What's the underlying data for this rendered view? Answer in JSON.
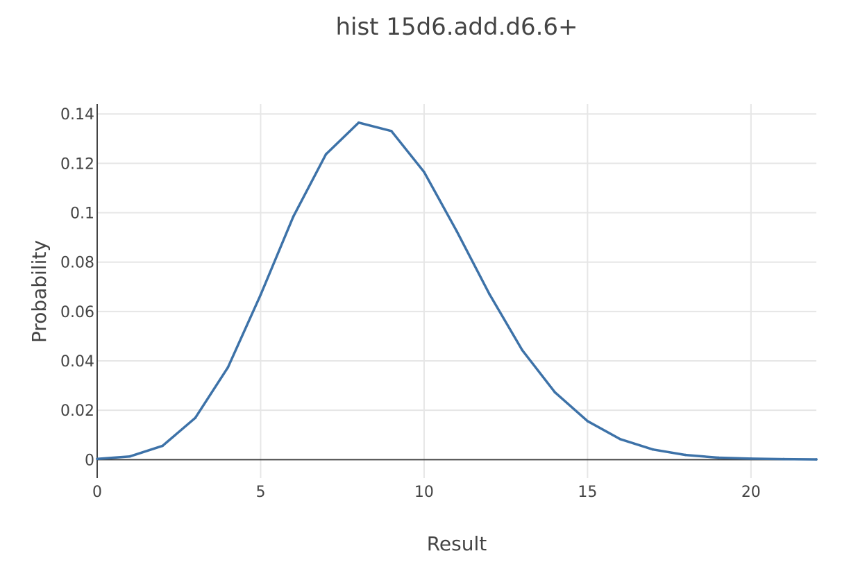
{
  "chart_data": {
    "type": "line",
    "title": "hist 15d6.add.d6.6+",
    "xlabel": "Result",
    "ylabel": "Probability",
    "xlim": [
      0,
      22
    ],
    "ylim": [
      -0.0075,
      0.144
    ],
    "x_ticks": [
      0,
      5,
      10,
      15,
      20
    ],
    "x_tick_labels": [
      "0",
      "5",
      "10",
      "15",
      "20"
    ],
    "y_ticks": [
      0,
      0.02,
      0.04,
      0.06,
      0.08,
      0.1,
      0.12,
      0.14
    ],
    "y_tick_labels": [
      "0",
      "0.02",
      "0.04",
      "0.06",
      "0.08",
      "0.1",
      "0.12",
      "0.14"
    ],
    "grid": true,
    "legend": false,
    "line_color": "#3d72a8",
    "series": [
      {
        "x": [
          0,
          1,
          2,
          3,
          4,
          5,
          6,
          7,
          8,
          9,
          10,
          11,
          12,
          13,
          14,
          15,
          16,
          17,
          18,
          19,
          20,
          21,
          22
        ],
        "values": [
          0.0003,
          0.0013,
          0.0056,
          0.0169,
          0.0374,
          0.0668,
          0.0984,
          0.1237,
          0.1365,
          0.1331,
          0.1165,
          0.0925,
          0.067,
          0.0444,
          0.0273,
          0.0156,
          0.0083,
          0.0041,
          0.0019,
          0.0008,
          0.0004,
          0.0002,
          0.0001
        ]
      }
    ]
  }
}
